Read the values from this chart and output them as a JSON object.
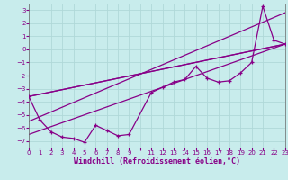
{
  "xlabel": "Windchill (Refroidissement éolien,°C)",
  "bg_color": "#c8ecec",
  "grid_color": "#b0d8d8",
  "line_color": "#880088",
  "series1_x": [
    0,
    1,
    2,
    3,
    4,
    5,
    6,
    7,
    8,
    9,
    11,
    12,
    13,
    14,
    15,
    16,
    17,
    18,
    19,
    20,
    21,
    22,
    23
  ],
  "series1_y": [
    -3.6,
    -5.4,
    -6.3,
    -6.7,
    -6.8,
    -7.1,
    -5.8,
    -6.2,
    -6.6,
    -6.5,
    -3.3,
    -2.9,
    -2.5,
    -2.3,
    -1.3,
    -2.2,
    -2.5,
    -2.4,
    -1.8,
    -1.0,
    3.3,
    0.7,
    0.4
  ],
  "line2_x": [
    0,
    23
  ],
  "line2_y": [
    -3.6,
    0.4
  ],
  "line3_x": [
    0,
    23
  ],
  "line3_y": [
    -3.6,
    0.4
  ],
  "line4_x": [
    0,
    23
  ],
  "line4_y": [
    -5.5,
    2.8
  ],
  "line5_x": [
    0,
    23
  ],
  "line5_y": [
    -6.5,
    0.4
  ],
  "xlim": [
    0,
    23
  ],
  "ylim": [
    -7.5,
    3.5
  ],
  "xtick_labels": [
    "0",
    "1",
    "2",
    "3",
    "4",
    "5",
    "6",
    "7",
    "8",
    "9",
    "",
    "11",
    "12",
    "13",
    "14",
    "15",
    "16",
    "17",
    "18",
    "19",
    "20",
    "21",
    "22",
    "23"
  ],
  "xtick_pos": [
    0,
    1,
    2,
    3,
    4,
    5,
    6,
    7,
    8,
    9,
    10,
    11,
    12,
    13,
    14,
    15,
    16,
    17,
    18,
    19,
    20,
    21,
    22,
    23
  ],
  "yticks": [
    -7,
    -6,
    -5,
    -4,
    -3,
    -2,
    -1,
    0,
    1,
    2,
    3
  ],
  "tick_fontsize": 5.0,
  "xlabel_fontsize": 6.0,
  "marker": "+"
}
